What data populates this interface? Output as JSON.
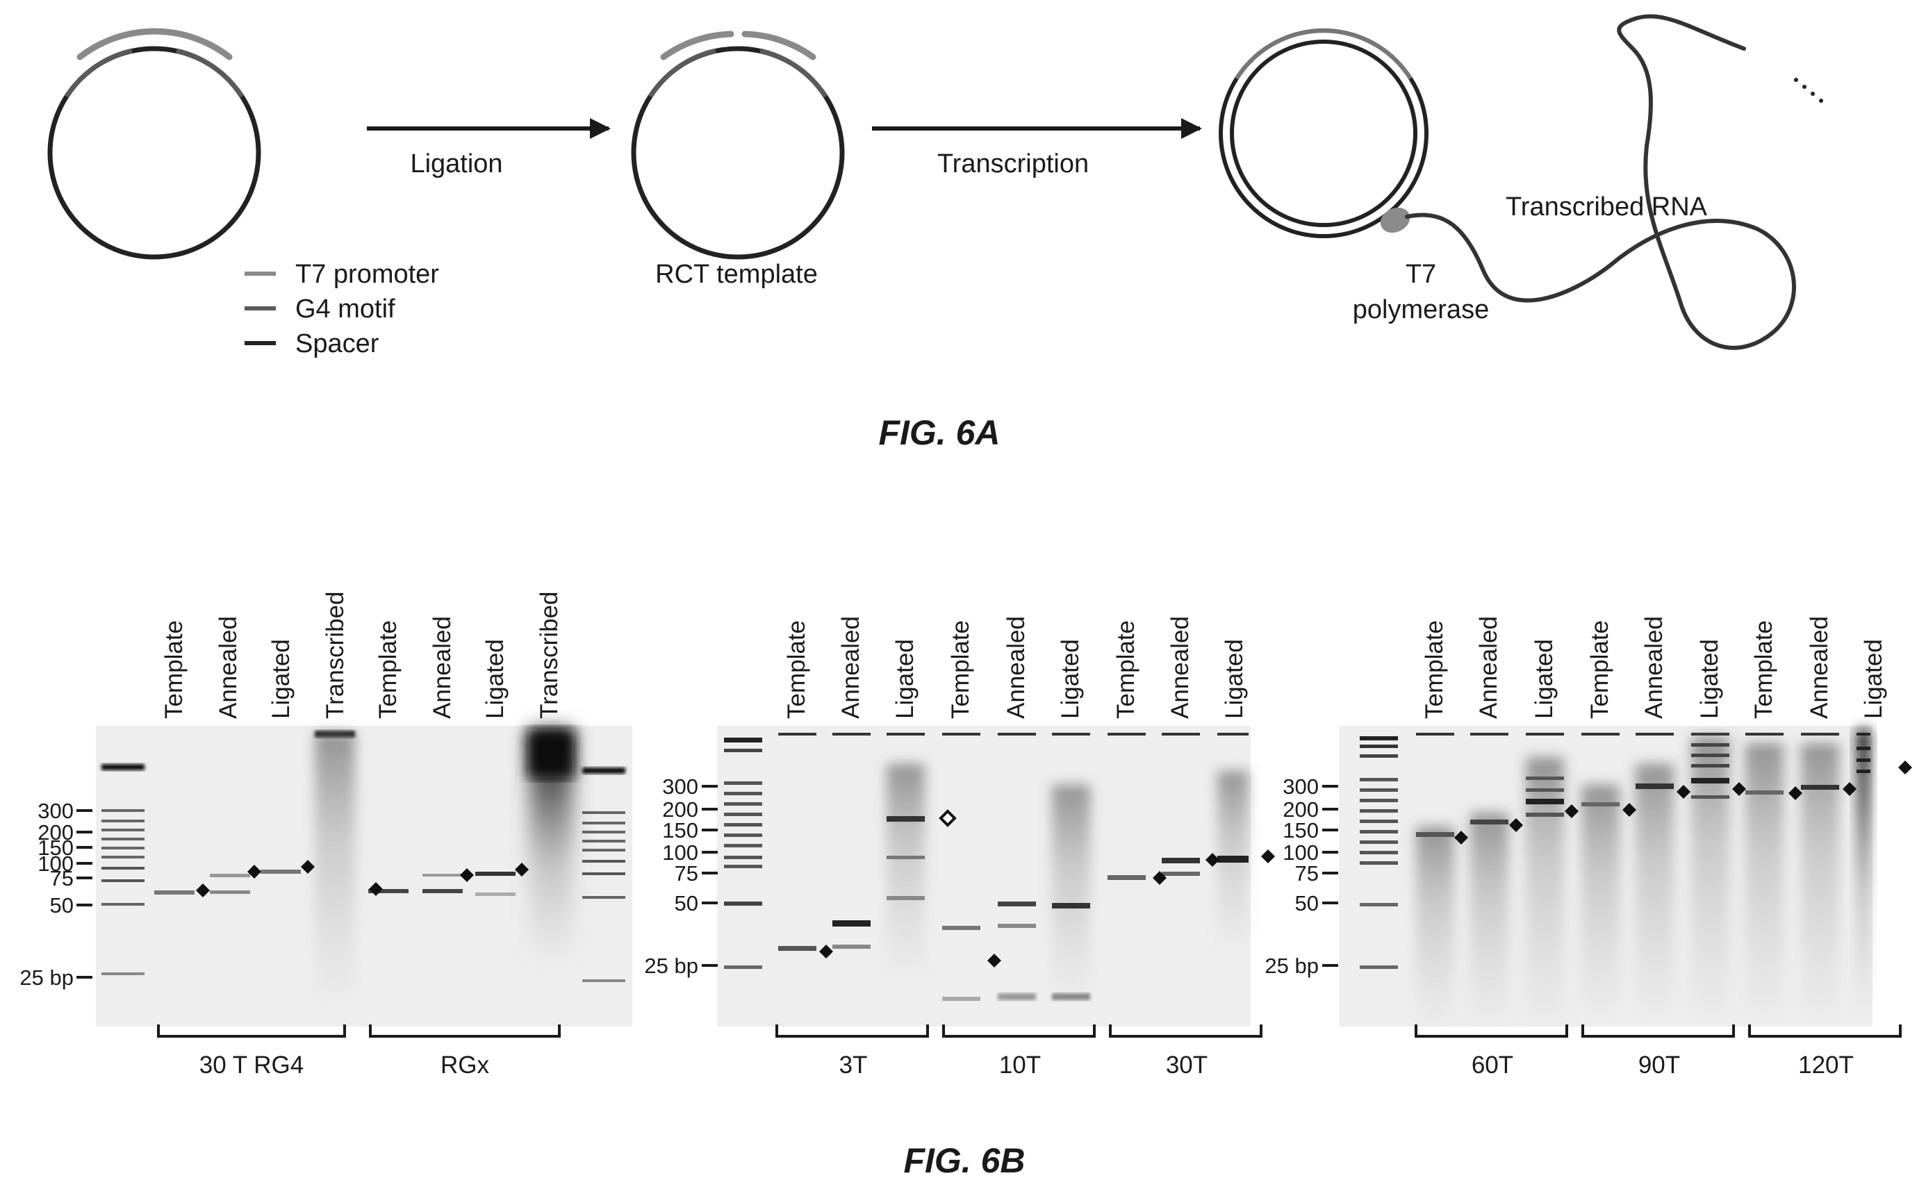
{
  "fig6a": {
    "caption": "FIG. 6A",
    "legend": {
      "t7_promoter": "T7 promoter",
      "g4_motif": "G4 motif",
      "spacer": "Spacer"
    },
    "steps": {
      "ligation": "Ligation",
      "transcription": "Transcription"
    },
    "labels": {
      "rct_template": "RCT template",
      "t7_line1": "T7",
      "t7_line2": "polymerase",
      "transcribed_rna": "Transcribed RNA"
    },
    "colors": {
      "promoter": "#8a8a8a",
      "g4": "#5a5a5a",
      "spacer": "#222222"
    }
  },
  "fig6b": {
    "caption": "FIG. 6B",
    "panel1": {
      "lanes": [
        "Template",
        "Annealed",
        "Ligated",
        "Transcribed",
        "Template",
        "Annealed",
        "Ligated",
        "Transcribed"
      ],
      "groups": [
        "30 T RG4",
        "RGx"
      ],
      "ladder": [
        "300",
        "200",
        "150",
        "100",
        "75",
        "50",
        "25 bp"
      ]
    },
    "panel2": {
      "lanes": [
        "Template",
        "Annealed",
        "Ligated",
        "Template",
        "Annealed",
        "Ligated",
        "Template",
        "Annealed",
        "Ligated"
      ],
      "groups": [
        "3T",
        "10T",
        "30T"
      ],
      "ladder": [
        "300",
        "200",
        "150",
        "100",
        "75",
        "50",
        "25 bp"
      ]
    },
    "panel3": {
      "lanes": [
        "Template",
        "Annealed",
        "Ligated",
        "Template",
        "Annealed",
        "Ligated",
        "Template",
        "Annealed",
        "Ligated"
      ],
      "groups": [
        "60T",
        "90T",
        "120T"
      ],
      "ladder": [
        "300",
        "200",
        "150",
        "100",
        "75",
        "50",
        "25 bp"
      ]
    }
  }
}
